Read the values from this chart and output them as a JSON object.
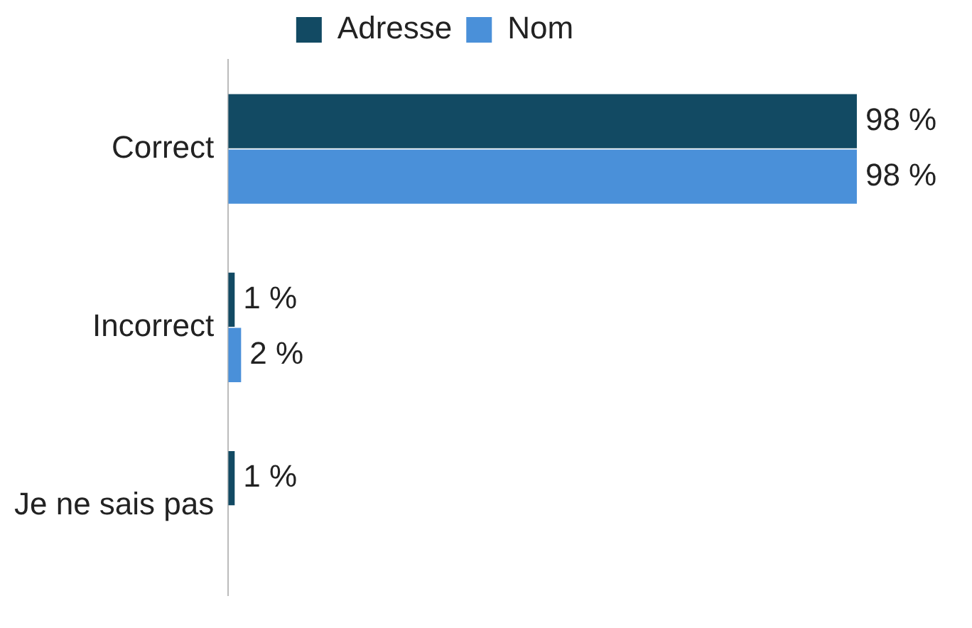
{
  "chart_data": {
    "type": "bar",
    "orientation": "horizontal",
    "categories": [
      "Correct",
      "Incorrect",
      "Je ne sais pas"
    ],
    "series": [
      {
        "name": "Adresse",
        "color": "#124a63",
        "values": [
          98,
          1,
          1
        ],
        "value_labels": [
          "98 %",
          "1 %",
          "1 %"
        ]
      },
      {
        "name": "Nom",
        "color": "#4a90d9",
        "values": [
          98,
          2,
          null
        ],
        "value_labels": [
          "98 %",
          "2 %",
          null
        ]
      }
    ],
    "legend": "top"
  }
}
